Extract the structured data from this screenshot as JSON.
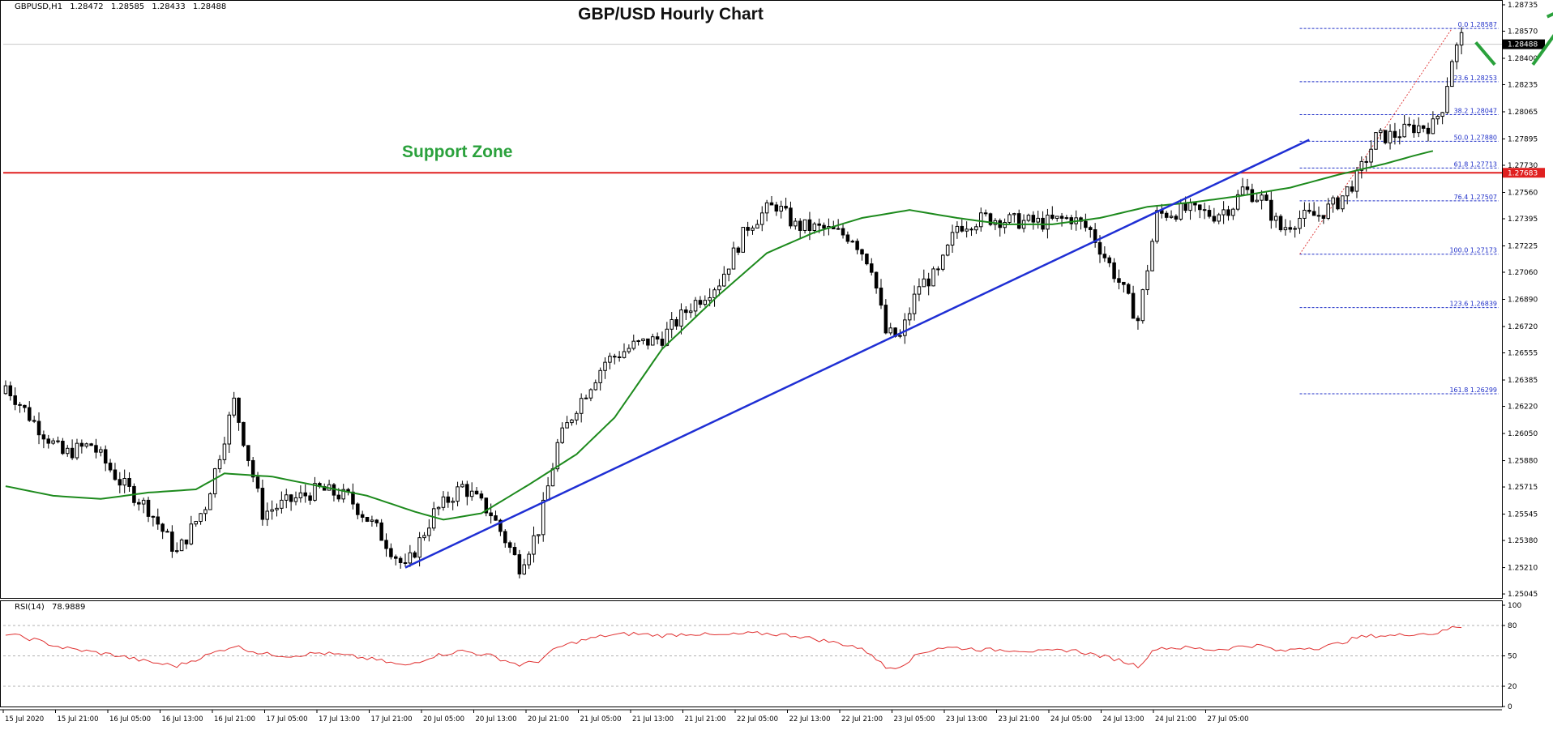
{
  "header": {
    "symbol": "GBPUSD,H1",
    "ohlc": [
      "1.28472",
      "1.28585",
      "1.28433",
      "1.28488"
    ]
  },
  "chart_data": {
    "type": "candlestick",
    "title": "GBP/USD Hourly Chart",
    "annotation": "Support Zone",
    "price_axis": {
      "ticks": [
        "1.28735",
        "1.28570",
        "1.28400",
        "1.28235",
        "1.28065",
        "1.27895",
        "1.27730",
        "1.27560",
        "1.27395",
        "1.27225",
        "1.27060",
        "1.26890",
        "1.26720",
        "1.26555",
        "1.26385",
        "1.26220",
        "1.26050",
        "1.25880",
        "1.25715",
        "1.25545",
        "1.25380",
        "1.25210",
        "1.25045"
      ],
      "range": [
        1.2502,
        1.2875
      ],
      "current_price": "1.28488",
      "support_price": "1.27683"
    },
    "time_axis": {
      "labels": [
        "15 Jul 2020",
        "15 Jul 21:00",
        "16 Jul 05:00",
        "16 Jul 13:00",
        "16 Jul 21:00",
        "17 Jul 05:00",
        "17 Jul 13:00",
        "17 Jul 21:00",
        "20 Jul 05:00",
        "20 Jul 13:00",
        "20 Jul 21:00",
        "21 Jul 05:00",
        "21 Jul 13:00",
        "21 Jul 21:00",
        "22 Jul 05:00",
        "22 Jul 13:00",
        "22 Jul 21:00",
        "23 Jul 05:00",
        "23 Jul 13:00",
        "23 Jul 21:00",
        "24 Jul 05:00",
        "24 Jul 13:00",
        "24 Jul 21:00",
        "27 Jul 05:00"
      ],
      "bars_total": 197
    },
    "close_anchors": [
      [
        0,
        1.2635
      ],
      [
        6,
        1.2612
      ],
      [
        12,
        1.2592
      ],
      [
        18,
        1.2598
      ],
      [
        24,
        1.2575
      ],
      [
        30,
        1.2558
      ],
      [
        36,
        1.253
      ],
      [
        42,
        1.256
      ],
      [
        48,
        1.2625
      ],
      [
        54,
        1.2555
      ],
      [
        60,
        1.2563
      ],
      [
        66,
        1.257
      ],
      [
        72,
        1.2565
      ],
      [
        78,
        1.2545
      ],
      [
        84,
        1.252
      ],
      [
        90,
        1.2555
      ],
      [
        96,
        1.2572
      ],
      [
        102,
        1.2555
      ],
      [
        108,
        1.2522
      ],
      [
        112,
        1.2545
      ],
      [
        116,
        1.2598
      ],
      [
        120,
        1.2622
      ],
      [
        126,
        1.265
      ],
      [
        132,
        1.266
      ],
      [
        138,
        1.2665
      ],
      [
        144,
        1.2685
      ],
      [
        150,
        1.27
      ],
      [
        156,
        1.2735
      ],
      [
        160,
        1.2745
      ],
      [
        162,
        1.2748
      ],
      [
        166,
        1.2735
      ],
      [
        172,
        1.2733
      ],
      [
        178,
        1.2728
      ],
      [
        182,
        1.271
      ],
      [
        185,
        1.2668
      ],
      [
        188,
        1.2665
      ],
      [
        192,
        1.2698
      ],
      [
        196,
        1.2705
      ],
      [
        200,
        1.2735
      ],
      [
        206,
        1.274
      ],
      [
        212,
        1.2738
      ],
      [
        218,
        1.2737
      ],
      [
        224,
        1.274
      ],
      [
        228,
        1.2732
      ],
      [
        234,
        1.27
      ],
      [
        238,
        1.2676
      ],
      [
        242,
        1.2742
      ],
      [
        248,
        1.2745
      ],
      [
        254,
        1.2742
      ],
      [
        258,
        1.2748
      ],
      [
        260,
        1.2758
      ],
      [
        264,
        1.2752
      ],
      [
        268,
        1.2733
      ],
      [
        272,
        1.274
      ],
      [
        276,
        1.2742
      ],
      [
        280,
        1.275
      ],
      [
        284,
        1.2765
      ],
      [
        288,
        1.279
      ],
      [
        292,
        1.2792
      ],
      [
        296,
        1.2797
      ],
      [
        300,
        1.2798
      ],
      [
        302,
        1.281
      ],
      [
        304,
        1.284
      ],
      [
        306,
        1.2853
      ]
    ],
    "series": [
      {
        "name": "Price",
        "color": "#000000"
      },
      {
        "name": "Moving Average",
        "color": "#1d8a1d"
      },
      {
        "name": "Trend Line",
        "color": "#1f2fd4"
      },
      {
        "name": "Support Zone",
        "color": "#e02020"
      }
    ],
    "ma_anchors": [
      [
        0,
        1.2572
      ],
      [
        10,
        1.2566
      ],
      [
        20,
        1.2564
      ],
      [
        30,
        1.2568
      ],
      [
        40,
        1.257
      ],
      [
        46,
        1.258
      ],
      [
        56,
        1.2578
      ],
      [
        66,
        1.2572
      ],
      [
        76,
        1.2566
      ],
      [
        86,
        1.2556
      ],
      [
        92,
        1.2551
      ],
      [
        100,
        1.2555
      ],
      [
        110,
        1.2573
      ],
      [
        120,
        1.2592
      ],
      [
        128,
        1.2615
      ],
      [
        138,
        1.2658
      ],
      [
        150,
        1.2692
      ],
      [
        160,
        1.2718
      ],
      [
        170,
        1.2731
      ],
      [
        180,
        1.274
      ],
      [
        190,
        1.2745
      ],
      [
        200,
        1.274
      ],
      [
        210,
        1.2736
      ],
      [
        220,
        1.2736
      ],
      [
        230,
        1.274
      ],
      [
        240,
        1.2747
      ],
      [
        250,
        1.275
      ],
      [
        260,
        1.2754
      ],
      [
        270,
        1.2759
      ],
      [
        280,
        1.2767
      ],
      [
        290,
        1.2774
      ],
      [
        296,
        1.2779
      ],
      [
        300,
        1.2782
      ]
    ],
    "trend_line": [
      [
        1.2521,
        84
      ],
      [
        1.2789,
        274
      ]
    ],
    "fibonacci": [
      {
        "level": "0.0",
        "price": "1.28587"
      },
      {
        "level": "23.6",
        "price": "1.28253"
      },
      {
        "level": "38.2",
        "price": "1.28047"
      },
      {
        "level": "50.0",
        "price": "1.27880"
      },
      {
        "level": "61.8",
        "price": "1.27713"
      },
      {
        "level": "76.4",
        "price": "1.27507"
      },
      {
        "level": "100.0",
        "price": "1.27173"
      },
      {
        "level": "123.6",
        "price": "1.26839"
      },
      {
        "level": "161.8",
        "price": "1.26299"
      }
    ],
    "rsi": {
      "label": "RSI(14)",
      "value": "78.9889",
      "ticks": [
        "100",
        "80",
        "50",
        "20",
        "0"
      ],
      "levels": [
        80,
        50,
        20
      ],
      "anchors": [
        [
          0,
          72
        ],
        [
          6,
          66
        ],
        [
          12,
          58
        ],
        [
          18,
          54
        ],
        [
          24,
          50
        ],
        [
          30,
          44
        ],
        [
          36,
          40
        ],
        [
          42,
          50
        ],
        [
          48,
          60
        ],
        [
          54,
          52
        ],
        [
          60,
          50
        ],
        [
          66,
          53
        ],
        [
          72,
          50
        ],
        [
          78,
          46
        ],
        [
          84,
          40
        ],
        [
          90,
          50
        ],
        [
          96,
          55
        ],
        [
          102,
          50
        ],
        [
          108,
          41
        ],
        [
          112,
          45
        ],
        [
          116,
          58
        ],
        [
          120,
          64
        ],
        [
          126,
          70
        ],
        [
          132,
          72
        ],
        [
          138,
          70
        ],
        [
          144,
          72
        ],
        [
          150,
          70
        ],
        [
          156,
          72
        ],
        [
          160,
          72
        ],
        [
          166,
          70
        ],
        [
          172,
          65
        ],
        [
          178,
          60
        ],
        [
          182,
          52
        ],
        [
          185,
          38
        ],
        [
          188,
          40
        ],
        [
          192,
          52
        ],
        [
          196,
          58
        ],
        [
          200,
          58
        ],
        [
          206,
          56
        ],
        [
          212,
          56
        ],
        [
          218,
          54
        ],
        [
          224,
          56
        ],
        [
          228,
          52
        ],
        [
          234,
          46
        ],
        [
          238,
          40
        ],
        [
          242,
          58
        ],
        [
          248,
          58
        ],
        [
          254,
          56
        ],
        [
          258,
          58
        ],
        [
          260,
          60
        ],
        [
          264,
          60
        ],
        [
          268,
          54
        ],
        [
          272,
          58
        ],
        [
          276,
          58
        ],
        [
          280,
          62
        ],
        [
          284,
          68
        ],
        [
          288,
          70
        ],
        [
          292,
          70
        ],
        [
          296,
          72
        ],
        [
          300,
          72
        ],
        [
          302,
          74
        ],
        [
          304,
          78
        ],
        [
          306,
          79
        ]
      ]
    },
    "grid": false
  }
}
